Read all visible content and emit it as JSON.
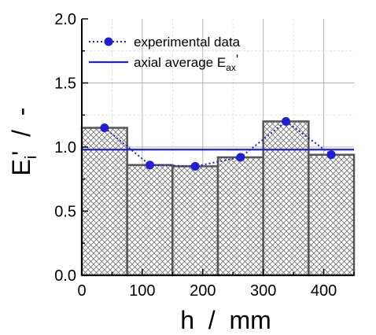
{
  "chart_data": {
    "type": "bar",
    "xlabel": "h  /  mm",
    "ylabel_main": "E",
    "ylabel_sub": "i",
    "ylabel_rest": "'  /  -",
    "xlim": [
      0,
      450
    ],
    "ylim": [
      0.0,
      2.0
    ],
    "x_ticks": [
      0,
      100,
      200,
      300,
      400
    ],
    "x_tick_labels": [
      "0",
      "100",
      "200",
      "300",
      "400"
    ],
    "y_ticks": [
      0.0,
      0.5,
      1.0,
      1.5,
      2.0
    ],
    "y_tick_labels": [
      "0.0",
      "0.5",
      "1.0",
      "1.5",
      "2.0"
    ],
    "grid": true,
    "legend_position": "top-left",
    "bars": [
      {
        "x_start": 0,
        "x_end": 75,
        "value": 1.15
      },
      {
        "x_start": 75,
        "x_end": 150,
        "value": 0.86
      },
      {
        "x_start": 150,
        "x_end": 225,
        "value": 0.85
      },
      {
        "x_start": 225,
        "x_end": 300,
        "value": 0.92
      },
      {
        "x_start": 300,
        "x_end": 375,
        "value": 1.2
      },
      {
        "x_start": 375,
        "x_end": 450,
        "value": 0.94
      }
    ],
    "series": [
      {
        "name": "experimental data",
        "style": "dotted-line-with-circle-markers",
        "x": [
          37.5,
          112.5,
          187.5,
          262.5,
          337.5,
          412.5
        ],
        "y": [
          1.15,
          0.86,
          0.85,
          0.92,
          1.2,
          0.94
        ]
      },
      {
        "name_main": "axial average E",
        "name_sub": "ax",
        "name_rest": "'",
        "style": "solid-horizontal-line",
        "y": 0.98
      }
    ],
    "colors": {
      "series": "#1f1fd6",
      "bar_edge": "#555555",
      "hatch": "#6e6e6e",
      "grid": "#c8c8c8",
      "axis": "#000000"
    }
  }
}
